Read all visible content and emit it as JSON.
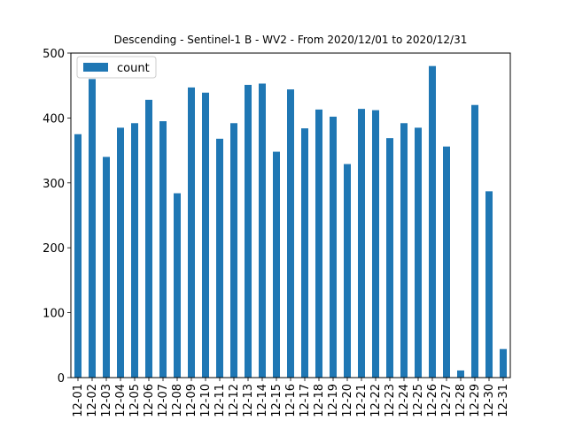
{
  "chart_data": {
    "type": "bar",
    "title": "Descending - Sentinel-1 B - WV2 - From 2020/12/01 to 2020/12/31",
    "xlabel": "",
    "ylabel": "",
    "categories": [
      "12-01",
      "12-02",
      "12-03",
      "12-04",
      "12-05",
      "12-06",
      "12-07",
      "12-08",
      "12-09",
      "12-10",
      "12-11",
      "12-12",
      "12-13",
      "12-14",
      "12-15",
      "12-16",
      "12-17",
      "12-18",
      "12-19",
      "12-20",
      "12-21",
      "12-22",
      "12-23",
      "12-24",
      "12-25",
      "12-26",
      "12-27",
      "12-28",
      "12-29",
      "12-30",
      "12-31"
    ],
    "series": [
      {
        "name": "count",
        "color": "#1f77b4",
        "values": [
          375,
          460,
          340,
          385,
          392,
          428,
          395,
          284,
          447,
          439,
          368,
          392,
          451,
          453,
          348,
          444,
          384,
          413,
          402,
          329,
          414,
          412,
          369,
          392,
          385,
          480,
          356,
          11,
          420,
          287,
          44
        ]
      }
    ],
    "ylim": [
      0,
      500
    ],
    "yticks": [
      0,
      100,
      200,
      300,
      400,
      500
    ],
    "grid": false,
    "legend_position": "top-left"
  }
}
